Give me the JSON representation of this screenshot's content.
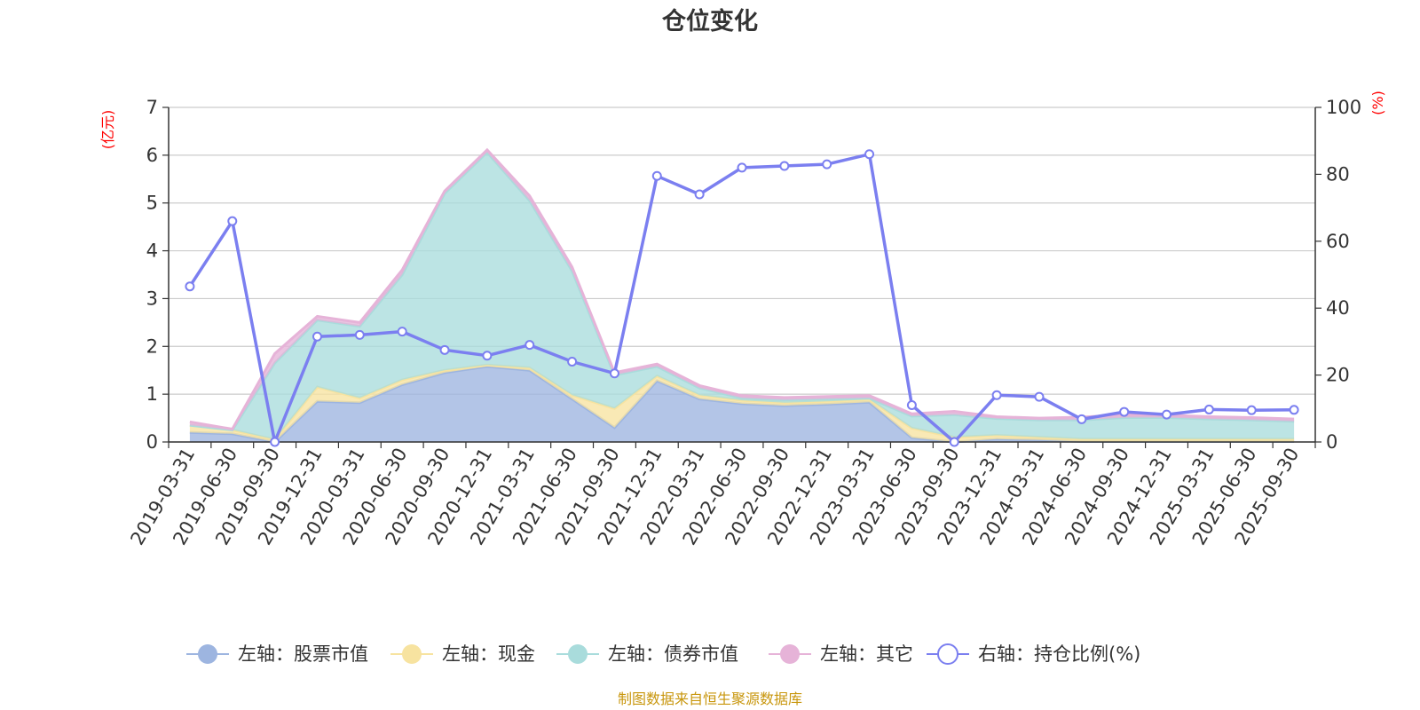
{
  "chart_data": {
    "type": "area",
    "title": "仓位变化",
    "left_axis_unit": "(亿元)",
    "right_axis_unit": "(%)",
    "left_ylim": [
      0,
      7
    ],
    "left_ticks": [
      "0",
      "1",
      "2",
      "3",
      "4",
      "5",
      "6",
      "7"
    ],
    "right_ylim": [
      0,
      100
    ],
    "right_ticks": [
      "0",
      "20",
      "40",
      "60",
      "80",
      "100"
    ],
    "categories": [
      "2019-03-31",
      "2019-06-30",
      "2019-09-30",
      "2019-12-31",
      "2020-03-31",
      "2020-06-30",
      "2020-09-30",
      "2020-12-31",
      "2021-03-31",
      "2021-06-30",
      "2021-09-30",
      "2021-12-31",
      "2022-03-31",
      "2022-06-30",
      "2022-09-30",
      "2022-12-31",
      "2023-03-31",
      "2023-06-30",
      "2023-09-30",
      "2023-12-31",
      "2024-03-31",
      "2024-06-30",
      "2024-09-30",
      "2024-12-31",
      "2025-03-31",
      "2025-06-30",
      "2025-09-30"
    ],
    "stacked_series": [
      {
        "name": "左轴：股票市值",
        "axis": "left",
        "color": "#9db5e0",
        "values": [
          0.2,
          0.17,
          0.0,
          0.85,
          0.82,
          1.2,
          1.45,
          1.58,
          1.5,
          0.9,
          0.3,
          1.28,
          0.9,
          0.8,
          0.76,
          0.79,
          0.83,
          0.09,
          0.0,
          0.06,
          0.04,
          0.01,
          0.01,
          0.01,
          0.01,
          0.01,
          0.01
        ]
      },
      {
        "name": "左轴：现金",
        "axis": "left",
        "color": "#f7e3a0",
        "values": [
          0.15,
          0.08,
          0.05,
          0.3,
          0.1,
          0.1,
          0.05,
          0.03,
          0.05,
          0.08,
          0.4,
          0.1,
          0.08,
          0.07,
          0.06,
          0.06,
          0.06,
          0.2,
          0.1,
          0.08,
          0.06,
          0.05,
          0.05,
          0.05,
          0.05,
          0.05,
          0.05
        ]
      },
      {
        "name": "左轴：债券市值",
        "axis": "left",
        "color": "#a9dcdc",
        "values": [
          0.0,
          0.0,
          1.6,
          1.4,
          1.5,
          2.2,
          3.7,
          4.45,
          3.5,
          2.6,
          0.7,
          0.2,
          0.15,
          0.05,
          0.06,
          0.05,
          0.03,
          0.25,
          0.47,
          0.35,
          0.36,
          0.4,
          0.45,
          0.45,
          0.42,
          0.4,
          0.37
        ]
      },
      {
        "name": "左轴：其它",
        "axis": "left",
        "color": "#e6b3d8",
        "values": [
          0.07,
          0.02,
          0.2,
          0.08,
          0.08,
          0.1,
          0.05,
          0.05,
          0.1,
          0.08,
          0.05,
          0.05,
          0.05,
          0.05,
          0.05,
          0.05,
          0.05,
          0.05,
          0.07,
          0.04,
          0.04,
          0.06,
          0.06,
          0.05,
          0.05,
          0.05,
          0.05
        ]
      }
    ],
    "line_series": {
      "name": "右轴：持仓比例(%)",
      "axis": "right",
      "color": "#7b7ff0",
      "values": [
        46.5,
        66.0,
        0.0,
        31.5,
        32.0,
        33.0,
        27.5,
        25.8,
        29.0,
        24.0,
        20.5,
        79.5,
        74.0,
        82.0,
        82.5,
        83.0,
        86.0,
        11.0,
        0.0,
        14.0,
        13.5,
        6.8,
        9.0,
        8.2,
        9.7,
        9.5,
        9.6
      ]
    },
    "legend_position": "bottom",
    "grid": true
  },
  "footer": {
    "source": "制图数据来自恒生聚源数据库"
  }
}
